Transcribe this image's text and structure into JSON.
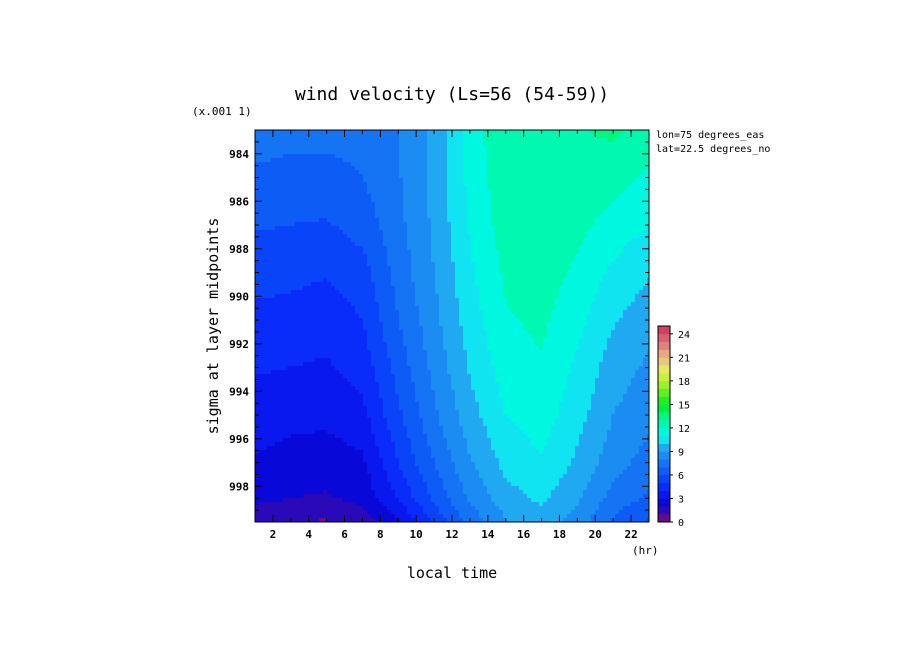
{
  "chart_data": {
    "type": "heatmap",
    "title": "wind velocity (Ls=56 (54-59))",
    "xlabel": "local time",
    "ylabel": "sigma at layer midpoints",
    "x_units": "(hr)",
    "y_scale_note": "(x.001 1)",
    "info_lines": [
      "lon=75 degrees_eas",
      "lat=22.5 degrees_no"
    ],
    "xlim": [
      1,
      23
    ],
    "ylim": [
      999.5,
      983
    ],
    "x_ticks": [
      "2",
      "4",
      "6",
      "8",
      "10",
      "12",
      "14",
      "16",
      "18",
      "20",
      "22"
    ],
    "y_ticks": [
      "984",
      "986",
      "988",
      "990",
      "992",
      "994",
      "996",
      "998"
    ],
    "x": [
      1,
      3,
      5,
      7,
      9,
      11,
      13,
      15,
      17,
      19,
      21,
      23
    ],
    "y": [
      983,
      985,
      987,
      989,
      991,
      993,
      995,
      997,
      998.5,
      999.5
    ],
    "z": [
      [
        7.5,
        7.3,
        7.4,
        7.3,
        8.0,
        9.3,
        11.5,
        12.8,
        13.0,
        12.9,
        13.2,
        12.6
      ],
      [
        6.8,
        6.7,
        6.6,
        7.0,
        7.9,
        9.3,
        11.3,
        12.7,
        13.0,
        12.8,
        12.4,
        11.8
      ],
      [
        6.1,
        6.0,
        5.9,
        6.4,
        7.7,
        9.2,
        11.1,
        12.5,
        12.8,
        12.3,
        11.6,
        11.0
      ],
      [
        5.4,
        5.3,
        5.1,
        5.6,
        7.4,
        9.0,
        10.8,
        12.2,
        12.5,
        11.8,
        10.8,
        10.1
      ],
      [
        4.7,
        4.6,
        4.3,
        5.0,
        7.0,
        8.7,
        10.5,
        11.9,
        12.2,
        11.3,
        10.1,
        9.4
      ],
      [
        4.1,
        4.0,
        3.9,
        4.4,
        6.4,
        8.3,
        10.1,
        11.5,
        11.9,
        10.8,
        9.5,
        8.8
      ],
      [
        3.5,
        3.3,
        3.3,
        3.7,
        5.8,
        7.8,
        9.6,
        11.0,
        11.5,
        10.4,
        9.0,
        8.3
      ],
      [
        2.9,
        2.6,
        2.4,
        2.8,
        5.0,
        7.0,
        8.9,
        10.3,
        10.9,
        9.8,
        8.4,
        7.6
      ],
      [
        2.3,
        2.0,
        1.9,
        2.3,
        4.1,
        6.2,
        8.2,
        9.6,
        10.2,
        9.2,
        7.6,
        6.8
      ],
      [
        1.2,
        1.0,
        0.9,
        1.4,
        2.8,
        5.2,
        7.3,
        8.9,
        9.7,
        8.5,
        6.8,
        5.9
      ]
    ],
    "colorbar": {
      "ticks": [
        "0",
        "3",
        "6",
        "9",
        "12",
        "15",
        "18",
        "21",
        "24"
      ],
      "min": 0,
      "max": 25,
      "step": 1,
      "colors": [
        "#6a0a8a",
        "#2a0ab8",
        "#0808d8",
        "#0a18f0",
        "#0a2cfa",
        "#0a44f8",
        "#0e5cf6",
        "#1474f4",
        "#1a8cf2",
        "#20a8f0",
        "#10e4f0",
        "#00f8e0",
        "#00f8b0",
        "#00f880",
        "#00f040",
        "#20f020",
        "#60f020",
        "#98f028",
        "#c8f040",
        "#e8e860",
        "#e8c880",
        "#e8a880",
        "#e08080",
        "#d86070",
        "#d04060"
      ]
    }
  }
}
